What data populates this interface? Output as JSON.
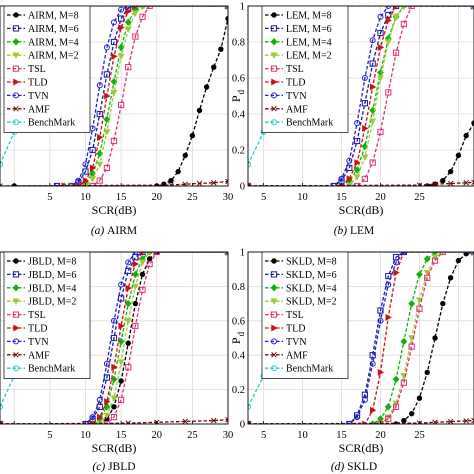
{
  "colors": {
    "AIRM, M=8": "#000000",
    "AIRM, M=6": "#1a1aa0",
    "AIRM, M=4": "#10b010",
    "AIRM, M=2": "#9acd32",
    "LEM, M=8": "#000000",
    "LEM, M=6": "#1a1aa0",
    "LEM, M=4": "#10b010",
    "LEM, M=2": "#9acd32",
    "JBLD, M=8": "#000000",
    "JBLD, M=6": "#1a1aa0",
    "JBLD, M=4": "#10b010",
    "JBLD, M=2": "#9acd32",
    "SKLD, M=8": "#000000",
    "SKLD, M=6": "#1a1aa0",
    "SKLD, M=4": "#10b010",
    "SKLD, M=2": "#9acd32",
    "TSL": "#e0307a",
    "TLD": "#cc1111",
    "TVN": "#2020cc",
    "AMF": "#6a0d0d",
    "BenchMark": "#22cccc"
  },
  "chart_data": [
    {
      "type": "line",
      "caption": "(a) AIRM",
      "xlabel": "SCR(dB)",
      "ylabel": "",
      "xlim": [
        -2,
        30
      ],
      "ylim": [
        0,
        1
      ],
      "xticks": [
        "",
        "5",
        "10",
        "15",
        "20",
        "25",
        "30"
      ],
      "yticks": [],
      "legend_position": "top-left",
      "series": [
        {
          "name": "AIRM, M=8",
          "marker": "dot",
          "x": [
            0,
            20,
            21,
            22,
            23,
            24,
            25,
            26,
            27,
            28,
            29,
            30
          ],
          "y": [
            0,
            0,
            0.01,
            0.03,
            0.08,
            0.17,
            0.28,
            0.42,
            0.55,
            0.66,
            0.76,
            0.93
          ]
        },
        {
          "name": "AIRM, M=6",
          "marker": "square",
          "x": [
            6,
            8,
            9,
            10,
            11,
            12,
            13,
            14,
            15,
            16,
            17,
            30
          ],
          "y": [
            0,
            0,
            0.02,
            0.08,
            0.2,
            0.4,
            0.62,
            0.8,
            0.93,
            0.99,
            1,
            1
          ]
        },
        {
          "name": "AIRM, M=4",
          "marker": "diamond",
          "x": [
            7,
            9,
            10,
            11,
            12,
            13,
            14,
            15,
            16,
            17,
            18,
            30
          ],
          "y": [
            0,
            0,
            0.02,
            0.07,
            0.18,
            0.37,
            0.58,
            0.77,
            0.91,
            0.98,
            1,
            1
          ]
        },
        {
          "name": "AIRM, M=2",
          "marker": "triangle-down",
          "x": [
            8,
            10,
            11,
            12,
            13,
            14,
            15,
            16,
            17,
            18,
            30
          ],
          "y": [
            0,
            0,
            0.04,
            0.12,
            0.3,
            0.52,
            0.72,
            0.87,
            0.96,
            1,
            1
          ]
        },
        {
          "name": "TSL",
          "marker": "square",
          "x": [
            9,
            11,
            12,
            13,
            14,
            15,
            16,
            17,
            18,
            19,
            30
          ],
          "y": [
            0,
            0,
            0.03,
            0.1,
            0.25,
            0.45,
            0.66,
            0.83,
            0.94,
            1,
            1
          ]
        },
        {
          "name": "TLD",
          "marker": "triangle-right",
          "x": [
            7,
            9,
            10,
            11,
            12,
            13,
            14,
            15,
            16,
            17,
            30
          ],
          "y": [
            0,
            0,
            0.03,
            0.1,
            0.27,
            0.5,
            0.72,
            0.88,
            0.97,
            1,
            1
          ]
        },
        {
          "name": "TVN",
          "marker": "circle",
          "x": [
            6,
            8,
            9,
            10,
            11,
            12,
            13,
            14,
            15,
            16,
            30
          ],
          "y": [
            0,
            0,
            0.03,
            0.12,
            0.32,
            0.56,
            0.77,
            0.91,
            0.98,
            1,
            1
          ]
        },
        {
          "name": "AMF",
          "marker": "x",
          "x": [
            -2,
            22,
            24,
            26,
            28,
            30
          ],
          "y": [
            0,
            0.005,
            0.01,
            0.014,
            0.018,
            0.025
          ]
        },
        {
          "name": "BenchMark",
          "marker": "circle",
          "x": [
            -2,
            0,
            1,
            2,
            3,
            4,
            5,
            6,
            30
          ],
          "y": [
            0.12,
            0.3,
            0.5,
            0.72,
            0.9,
            0.98,
            1,
            1,
            1
          ]
        }
      ]
    },
    {
      "type": "line",
      "caption": "(b) LEM",
      "xlabel": "SCR(dB)",
      "ylabel": "P_d",
      "xlim": [
        -2,
        27
      ],
      "ylim": [
        0,
        1
      ],
      "xticks": [
        "5",
        "10",
        "15",
        "20",
        "25"
      ],
      "yticks": [
        "0",
        "0.2",
        "0.4",
        "0.6",
        "0.8",
        "1"
      ],
      "legend_position": "top-left",
      "series": [
        {
          "name": "LEM, M=8",
          "marker": "dot",
          "x": [
            -2,
            21,
            22,
            23,
            24,
            25,
            26,
            27
          ],
          "y": [
            0,
            0,
            0.01,
            0.03,
            0.08,
            0.17,
            0.28,
            0.35
          ]
        },
        {
          "name": "LEM, M=6",
          "marker": "square",
          "x": [
            -2,
            9,
            10,
            11,
            12,
            13,
            14,
            15,
            16,
            17,
            27
          ],
          "y": [
            0,
            0,
            0.03,
            0.1,
            0.25,
            0.46,
            0.68,
            0.85,
            0.95,
            1,
            1
          ]
        },
        {
          "name": "LEM, M=4",
          "marker": "diamond",
          "x": [
            -2,
            10,
            11,
            12,
            13,
            14,
            15,
            16,
            17,
            18,
            27
          ],
          "y": [
            0,
            0,
            0.03,
            0.09,
            0.22,
            0.42,
            0.63,
            0.82,
            0.94,
            1,
            1
          ]
        },
        {
          "name": "LEM, M=2",
          "marker": "triangle-down",
          "x": [
            -2,
            11,
            12,
            13,
            14,
            15,
            16,
            17,
            18,
            27
          ],
          "y": [
            0,
            0,
            0.05,
            0.16,
            0.36,
            0.6,
            0.8,
            0.94,
            1,
            1
          ]
        },
        {
          "name": "TSL",
          "marker": "square",
          "x": [
            -2,
            12,
            13,
            14,
            15,
            16,
            17,
            18,
            19,
            27
          ],
          "y": [
            0,
            0,
            0.04,
            0.13,
            0.3,
            0.52,
            0.74,
            0.9,
            1,
            1
          ]
        },
        {
          "name": "TLD",
          "marker": "triangle-right",
          "x": [
            -2,
            10,
            11,
            12,
            13,
            14,
            15,
            16,
            17,
            27
          ],
          "y": [
            0,
            0,
            0.04,
            0.13,
            0.32,
            0.55,
            0.77,
            0.92,
            1,
            1
          ]
        },
        {
          "name": "TVN",
          "marker": "circle",
          "x": [
            -2,
            9,
            10,
            11,
            12,
            13,
            14,
            15,
            16,
            27
          ],
          "y": [
            0,
            0,
            0.04,
            0.14,
            0.35,
            0.6,
            0.81,
            0.94,
            1,
            1
          ]
        },
        {
          "name": "AMF",
          "marker": "x",
          "x": [
            -2,
            20,
            22,
            24,
            26,
            27
          ],
          "y": [
            0,
            0.005,
            0.01,
            0.014,
            0.018,
            0.02
          ]
        },
        {
          "name": "BenchMark",
          "marker": "circle",
          "x": [
            -2,
            0,
            1,
            2,
            3,
            4,
            5,
            6,
            27
          ],
          "y": [
            0.12,
            0.3,
            0.5,
            0.72,
            0.9,
            0.98,
            1,
            1,
            1
          ]
        }
      ]
    },
    {
      "type": "line",
      "caption": "(c) JBLD",
      "xlabel": "SCR(dB)",
      "ylabel": "",
      "xlim": [
        -2,
        30
      ],
      "ylim": [
        0,
        1
      ],
      "xticks": [
        "",
        "5",
        "10",
        "15",
        "20",
        "25",
        "30"
      ],
      "yticks": [],
      "legend_position": "top-left",
      "series": [
        {
          "name": "JBLD, M=8",
          "marker": "dot",
          "x": [
            -2,
            12,
            13,
            14,
            15,
            16,
            17,
            18,
            19,
            20,
            30
          ],
          "y": [
            0,
            0,
            0.03,
            0.1,
            0.25,
            0.47,
            0.7,
            0.87,
            0.96,
            1,
            1
          ]
        },
        {
          "name": "JBLD, M=6",
          "marker": "square",
          "x": [
            -2,
            10,
            11,
            12,
            13,
            14,
            15,
            16,
            17,
            18,
            30
          ],
          "y": [
            0,
            0,
            0.03,
            0.1,
            0.27,
            0.5,
            0.73,
            0.89,
            0.97,
            1,
            1
          ]
        },
        {
          "name": "JBLD, M=4",
          "marker": "diamond",
          "x": [
            -2,
            11,
            12,
            13,
            14,
            15,
            16,
            17,
            18,
            19,
            30
          ],
          "y": [
            0,
            0,
            0.03,
            0.1,
            0.26,
            0.48,
            0.7,
            0.87,
            0.96,
            1,
            1
          ]
        },
        {
          "name": "JBLD, M=2",
          "marker": "triangle-down",
          "x": [
            -2,
            12,
            13,
            14,
            15,
            16,
            17,
            18,
            19,
            30
          ],
          "y": [
            0,
            0,
            0.05,
            0.15,
            0.36,
            0.6,
            0.8,
            0.94,
            1,
            1
          ]
        },
        {
          "name": "TSL",
          "marker": "square",
          "x": [
            -2,
            13,
            14,
            15,
            16,
            17,
            18,
            19,
            20,
            30
          ],
          "y": [
            0,
            0,
            0.04,
            0.14,
            0.33,
            0.57,
            0.78,
            0.93,
            1,
            1
          ]
        },
        {
          "name": "TLD",
          "marker": "triangle-right",
          "x": [
            -2,
            11,
            12,
            13,
            14,
            15,
            16,
            17,
            18,
            30
          ],
          "y": [
            0,
            0,
            0.04,
            0.13,
            0.33,
            0.57,
            0.79,
            0.93,
            1,
            1
          ]
        },
        {
          "name": "TVN",
          "marker": "circle",
          "x": [
            -2,
            10,
            11,
            12,
            13,
            14,
            15,
            16,
            17,
            30
          ],
          "y": [
            0,
            0,
            0.04,
            0.14,
            0.35,
            0.6,
            0.81,
            0.94,
            1,
            1
          ]
        },
        {
          "name": "AMF",
          "marker": "x",
          "x": [
            -2,
            16,
            20,
            24,
            28,
            30
          ],
          "y": [
            0,
            0.005,
            0.01,
            0.015,
            0.02,
            0.025
          ]
        },
        {
          "name": "BenchMark",
          "marker": "circle",
          "x": [
            -2,
            0,
            1,
            2,
            3,
            4,
            5,
            6,
            30
          ],
          "y": [
            0.1,
            0.28,
            0.48,
            0.7,
            0.88,
            0.97,
            1,
            1,
            1
          ]
        }
      ]
    },
    {
      "type": "line",
      "caption": "(d) SKLD",
      "xlabel": "SCR(dB)",
      "ylabel": "P_d",
      "xlim": [
        -2,
        27
      ],
      "ylim": [
        0,
        1
      ],
      "xticks": [
        "5",
        "10",
        "15",
        "20",
        "25"
      ],
      "yticks": [
        "0",
        "0.2",
        "0.4",
        "0.6",
        "0.8",
        "1"
      ],
      "legend_position": "top-left",
      "series": [
        {
          "name": "SKLD, M=8",
          "marker": "dot",
          "x": [
            -2,
            17,
            18,
            19,
            20,
            21,
            22,
            23,
            24,
            25,
            26,
            27
          ],
          "y": [
            0,
            0,
            0.02,
            0.06,
            0.15,
            0.3,
            0.5,
            0.7,
            0.85,
            0.95,
            0.99,
            1
          ]
        },
        {
          "name": "SKLD, M=6",
          "marker": "square",
          "x": [
            -2,
            11,
            12,
            13,
            14,
            15,
            16,
            17,
            18,
            27
          ],
          "y": [
            0,
            0,
            0.05,
            0.17,
            0.4,
            0.66,
            0.86,
            0.97,
            1,
            1
          ]
        },
        {
          "name": "SKLD, M=4",
          "marker": "diamond",
          "x": [
            -2,
            14,
            15,
            16,
            17,
            18,
            19,
            20,
            21,
            22,
            27
          ],
          "y": [
            0,
            0,
            0.03,
            0.1,
            0.26,
            0.48,
            0.7,
            0.87,
            0.96,
            1,
            1
          ]
        },
        {
          "name": "SKLD, M=2",
          "marker": "triangle-down",
          "x": [
            -2,
            15,
            16,
            17,
            18,
            19,
            20,
            21,
            22,
            23,
            27
          ],
          "y": [
            0,
            0,
            0.04,
            0.12,
            0.28,
            0.5,
            0.72,
            0.88,
            0.97,
            1,
            1
          ]
        },
        {
          "name": "TSL",
          "marker": "square",
          "x": [
            -2,
            15,
            16,
            17,
            18,
            19,
            20,
            21,
            22,
            23,
            27
          ],
          "y": [
            0,
            0,
            0.03,
            0.1,
            0.24,
            0.45,
            0.67,
            0.85,
            0.95,
            1,
            1
          ]
        },
        {
          "name": "TLD",
          "marker": "triangle-right",
          "x": [
            -2,
            13,
            14,
            15,
            16,
            17,
            18,
            27
          ],
          "y": [
            0,
            0,
            0.08,
            0.3,
            0.62,
            0.88,
            1,
            1
          ]
        },
        {
          "name": "TVN",
          "marker": "circle",
          "x": [
            -2,
            11,
            12,
            13,
            14,
            15,
            16,
            17,
            18,
            27
          ],
          "y": [
            0,
            0,
            0.04,
            0.14,
            0.35,
            0.6,
            0.81,
            0.94,
            1,
            1
          ]
        },
        {
          "name": "AMF",
          "marker": "x",
          "x": [
            -2,
            20,
            22,
            24,
            26,
            27
          ],
          "y": [
            0,
            0.005,
            0.01,
            0.014,
            0.018,
            0.02
          ]
        },
        {
          "name": "BenchMark",
          "marker": "circle",
          "x": [
            -2,
            0,
            1,
            2,
            3,
            4,
            5,
            6,
            27
          ],
          "y": [
            0.1,
            0.28,
            0.48,
            0.7,
            0.88,
            0.97,
            1,
            1,
            1
          ]
        }
      ]
    }
  ]
}
